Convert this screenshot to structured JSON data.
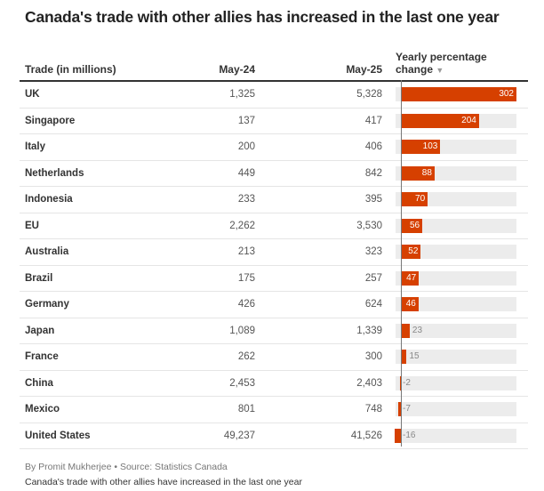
{
  "title": "Canada's trade with other allies has increased in the last one year",
  "columns": {
    "trade": "Trade (in millions)",
    "may24": "May-24",
    "may25": "May-25",
    "change_line1": "Yearly percentage",
    "change_line2": "change",
    "sort_icon": "▼"
  },
  "colors": {
    "bar": "#d64000",
    "bar_background": "#ececec"
  },
  "chart_data": {
    "type": "table",
    "sorted_by": "Yearly percentage change (descending)",
    "rows": [
      {
        "name": "UK",
        "may24": "1,325",
        "may25": "5,328",
        "change": 302
      },
      {
        "name": "Singapore",
        "may24": "137",
        "may25": "417",
        "change": 204
      },
      {
        "name": "Italy",
        "may24": "200",
        "may25": "406",
        "change": 103
      },
      {
        "name": "Netherlands",
        "may24": "449",
        "may25": "842",
        "change": 88
      },
      {
        "name": "Indonesia",
        "may24": "233",
        "may25": "395",
        "change": 70
      },
      {
        "name": "EU",
        "may24": "2,262",
        "may25": "3,530",
        "change": 56
      },
      {
        "name": "Australia",
        "may24": "213",
        "may25": "323",
        "change": 52
      },
      {
        "name": "Brazil",
        "may24": "175",
        "may25": "257",
        "change": 47
      },
      {
        "name": "Germany",
        "may24": "426",
        "may25": "624",
        "change": 46
      },
      {
        "name": "Japan",
        "may24": "1,089",
        "may25": "1,339",
        "change": 23
      },
      {
        "name": "France",
        "may24": "262",
        "may25": "300",
        "change": 15
      },
      {
        "name": "China",
        "may24": "2,453",
        "may25": "2,403",
        "change": -2
      },
      {
        "name": "Mexico",
        "may24": "801",
        "may25": "748",
        "change": -7
      },
      {
        "name": "United States",
        "may24": "49,237",
        "may25": "41,526",
        "change": -16
      }
    ],
    "bar_range": [
      -16,
      302
    ]
  },
  "footer": {
    "byline": "By Promit Mukherjee • Source: Statistics Canada",
    "caption": "Canada's trade with other allies have increased in the last one year"
  }
}
